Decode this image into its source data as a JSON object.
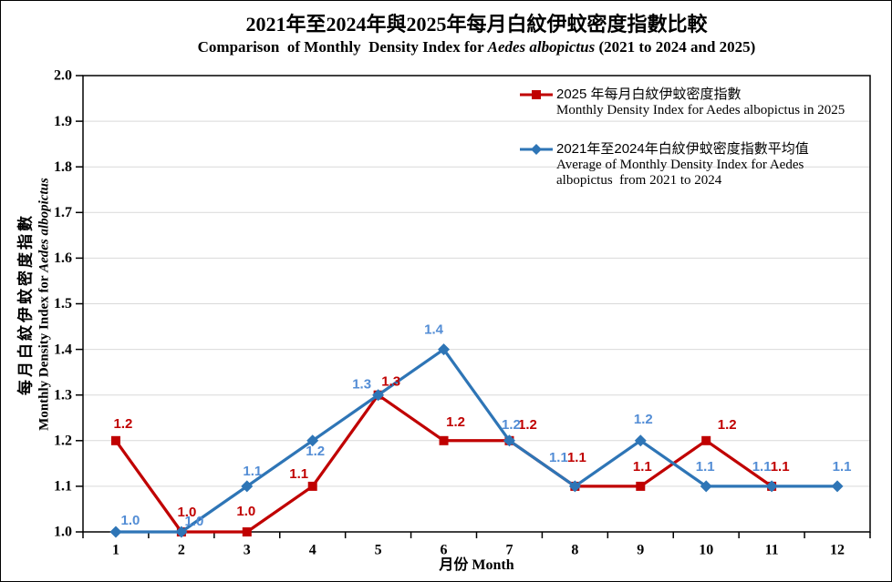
{
  "header": {
    "title_zh": "2021年至2024年與2025年每月白紋伊蚊密度指數比較",
    "subtitle_prefix": "Comparison  of Monthly  Density Index for ",
    "subtitle_species": "Aedes albopictus",
    "subtitle_suffix": " (2021 to 2024 and 2025)"
  },
  "axes": {
    "x_title": "月份 Month",
    "y_title_zh": "每月白紋伊蚊密度指數",
    "y_title_en_prefix": "Monthly Density Index for ",
    "y_title_en_species": "Aedes albopictus"
  },
  "legend": {
    "item1": {
      "zh": "2025 年每月白紋伊蚊密度指數",
      "en": "Monthly Density Index for Aedes albopictus in 2025"
    },
    "item2": {
      "zh": "2021年至2024年白紋伊蚊密度指數平均值",
      "en1": "Average of Monthly Density Index for Aedes",
      "en2": "albopictus  from 2021 to 2024"
    }
  },
  "colors": {
    "series_2025": "#C00000",
    "series_average": "#2E75B6",
    "label_2025": "#C00000",
    "label_average": "#538DD5",
    "gridline": "#D9D9D9",
    "axis": "#000000"
  },
  "chart_data": {
    "type": "line",
    "categories": [
      "1",
      "2",
      "3",
      "4",
      "5",
      "6",
      "7",
      "8",
      "9",
      "10",
      "11",
      "12"
    ],
    "xlabel": "月份 Month",
    "ylabel": "每月白紋伊蚊密度指數 Monthly Density Index for Aedes albopictus",
    "ylim": [
      1.0,
      2.0
    ],
    "ytick_step": 0.1,
    "grid": "horizontal-light",
    "legend_position": "inside-top-right",
    "series": [
      {
        "name": "2025 年每月白紋伊蚊密度指數 / Monthly Density Index for Aedes albopictus in 2025",
        "color": "#C00000",
        "label_color": "#C00000",
        "marker": "square",
        "x": [
          1,
          2,
          3,
          4,
          5,
          6,
          7,
          8,
          9,
          10,
          11
        ],
        "values": [
          1.2,
          1.0,
          1.0,
          1.1,
          1.3,
          1.2,
          1.2,
          1.1,
          1.1,
          1.2,
          1.1
        ],
        "label_offsets": [
          [
            8,
            -18
          ],
          [
            6,
            -21
          ],
          [
            -1,
            -22
          ],
          [
            -15,
            -13
          ],
          [
            14,
            -14
          ],
          [
            13,
            -20
          ],
          [
            20,
            -17
          ],
          [
            2,
            -31
          ],
          [
            2,
            -21
          ],
          [
            23,
            -17
          ],
          [
            9,
            -21
          ]
        ]
      },
      {
        "name": "2021年至2024年白紋伊蚊密度指數平均值 / Average of Monthly Density Index for Aedes albopictus from 2021 to 2024",
        "color": "#2E75B6",
        "label_color": "#538DD5",
        "marker": "diamond",
        "x": [
          1,
          2,
          3,
          4,
          5,
          6,
          7,
          8,
          9,
          10,
          11,
          12
        ],
        "values": [
          1.0,
          1.0,
          1.1,
          1.2,
          1.3,
          1.4,
          1.2,
          1.1,
          1.2,
          1.1,
          1.1,
          1.1
        ],
        "label_offsets": [
          [
            16,
            -12
          ],
          [
            14,
            -11
          ],
          [
            6,
            -16
          ],
          [
            3,
            12
          ],
          [
            -18,
            -11
          ],
          [
            -11,
            -21
          ],
          [
            2,
            -17
          ],
          [
            -18,
            -31
          ],
          [
            3,
            -23
          ],
          [
            -1,
            -21
          ],
          [
            -11,
            -21
          ],
          [
            5,
            -21
          ]
        ]
      }
    ]
  }
}
